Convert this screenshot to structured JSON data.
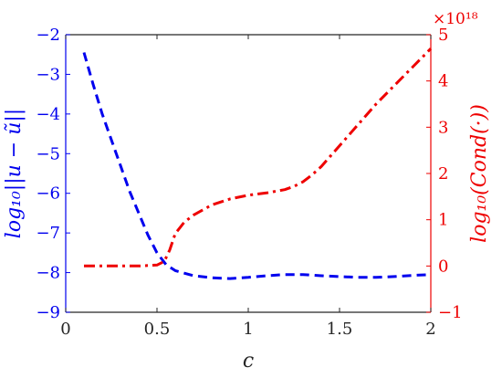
{
  "chart_data": {
    "type": "line",
    "title": "",
    "xlabel": "c",
    "ylabel_left": "log₁₀||u − ũ||",
    "ylabel_right": "log₁₀(Cond(·))",
    "right_axis_multiplier": "×10¹⁸",
    "xlim": [
      0,
      2
    ],
    "ylim_left": [
      -9,
      -2
    ],
    "ylim_right": [
      -1,
      5
    ],
    "x_ticks": [
      "0",
      "0.5",
      "1",
      "1.5",
      "2"
    ],
    "y_ticks_left": [
      "-9",
      "-8",
      "-7",
      "-6",
      "-5",
      "-4",
      "-3",
      "-2"
    ],
    "y_ticks_right": [
      "-1",
      "0",
      "1",
      "2",
      "3",
      "4",
      "5"
    ],
    "grid": false,
    "colors": {
      "left": "#0000ee",
      "right": "#ee0000",
      "box": "#262626"
    },
    "series": [
      {
        "axis": "left",
        "style": "dashed",
        "color": "#0000ee",
        "x": [
          0.1,
          0.15,
          0.2,
          0.25,
          0.3,
          0.35,
          0.4,
          0.45,
          0.5,
          0.55,
          0.6,
          0.7,
          0.8,
          0.9,
          1.0,
          1.1,
          1.2,
          1.3,
          1.4,
          1.5,
          1.6,
          1.7,
          1.8,
          1.9,
          2.0
        ],
        "y": [
          -2.45,
          -3.25,
          -4.0,
          -4.65,
          -5.3,
          -5.95,
          -6.5,
          -7.05,
          -7.5,
          -7.8,
          -7.95,
          -8.08,
          -8.13,
          -8.15,
          -8.12,
          -8.08,
          -8.05,
          -8.05,
          -8.08,
          -8.1,
          -8.12,
          -8.12,
          -8.1,
          -8.07,
          -8.05
        ]
      },
      {
        "axis": "right",
        "style": "dashdot",
        "color": "#ee0000",
        "x": [
          0.1,
          0.2,
          0.3,
          0.4,
          0.5,
          0.54,
          0.57,
          0.6,
          0.65,
          0.7,
          0.8,
          0.9,
          1.0,
          1.1,
          1.2,
          1.25,
          1.3,
          1.35,
          1.4,
          1.5,
          1.6,
          1.7,
          1.8,
          1.9,
          2.0
        ],
        "y": [
          0.0,
          0.0,
          0.0,
          0.0,
          0.02,
          0.1,
          0.35,
          0.7,
          0.95,
          1.1,
          1.32,
          1.45,
          1.53,
          1.58,
          1.65,
          1.72,
          1.82,
          1.97,
          2.15,
          2.6,
          3.05,
          3.5,
          3.9,
          4.3,
          4.7
        ]
      }
    ]
  }
}
